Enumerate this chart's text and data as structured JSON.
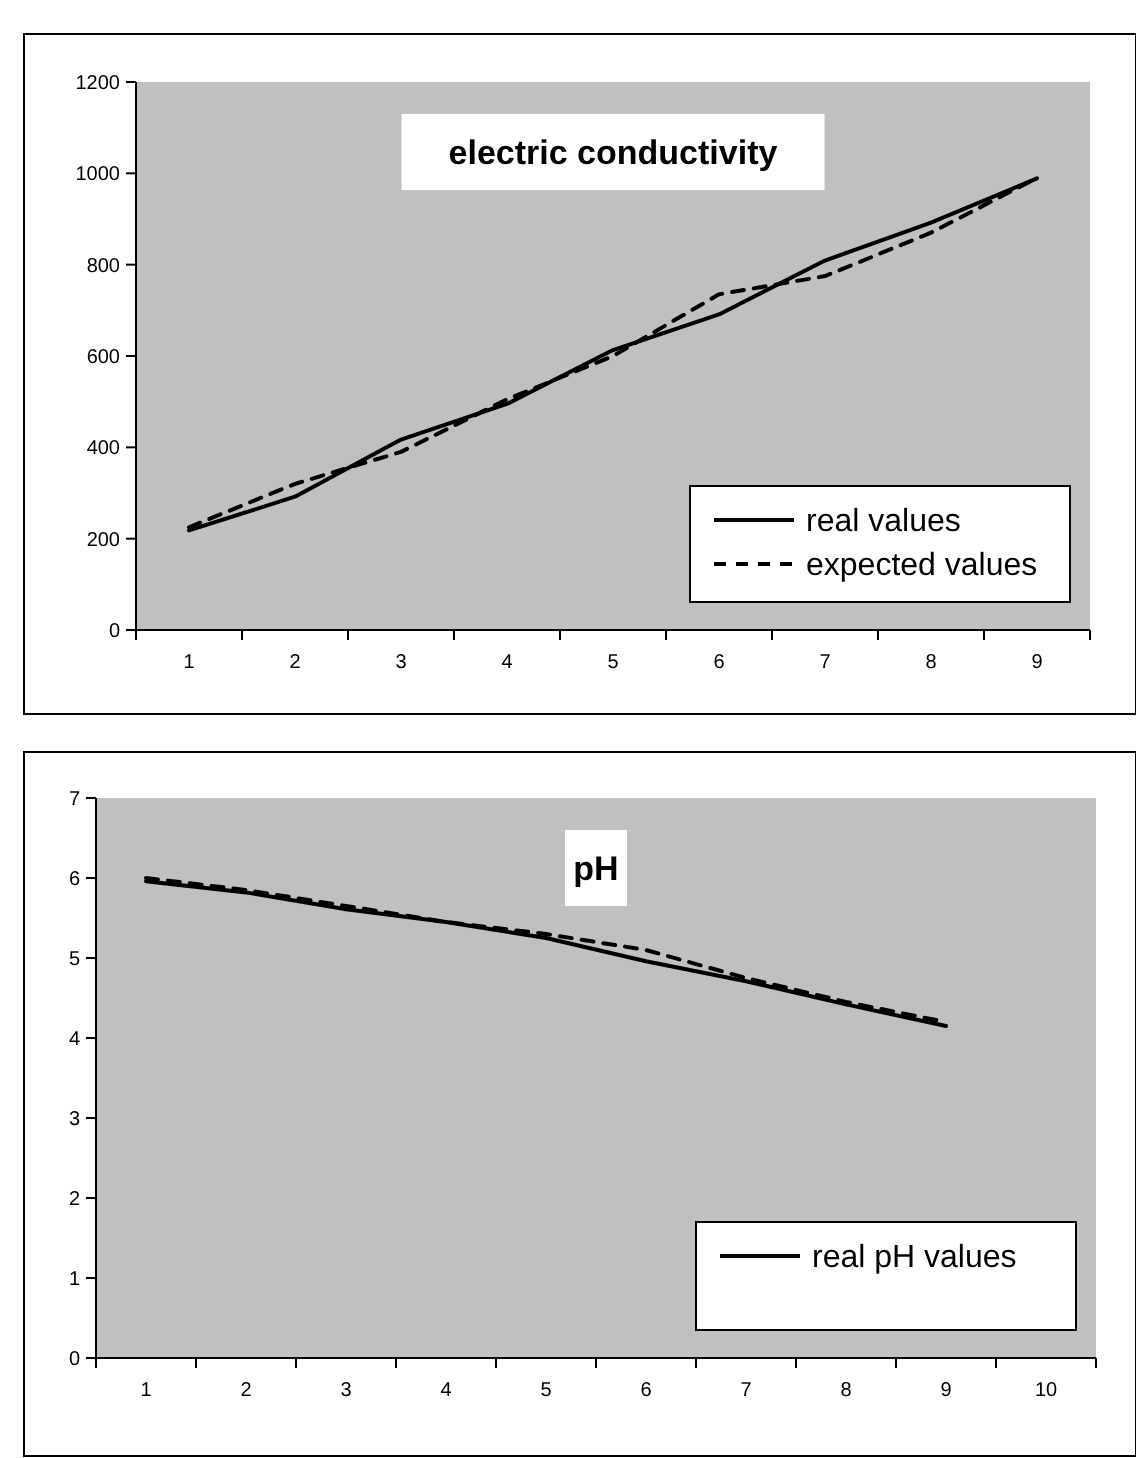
{
  "chart_data": [
    {
      "type": "line",
      "title": "electric conductivity",
      "categories": [
        "1",
        "2",
        "3",
        "4",
        "5",
        "6",
        "7",
        "8",
        "9"
      ],
      "series": [
        {
          "name": "real values",
          "color": "#000000",
          "line_style": "solid",
          "values": [
            218,
            292,
            417,
            495,
            613,
            691,
            809,
            892,
            989
          ]
        },
        {
          "name": "expected values",
          "color": "#000000",
          "line_style": "dashed",
          "values": [
            225,
            320,
            390,
            505,
            600,
            735,
            775,
            870,
            990
          ]
        }
      ],
      "ylim": [
        0,
        1200
      ],
      "yticks": [
        0,
        200,
        400,
        600,
        800,
        1000,
        1200
      ],
      "grid": false,
      "legend": "bottom right",
      "marker": "none"
    },
    {
      "type": "line",
      "title": "pH",
      "categories": [
        "1",
        "2",
        "3",
        "4",
        "5",
        "6",
        "7",
        "8",
        "9",
        "10"
      ],
      "series": [
        {
          "name": "real pH values",
          "color": "#000000",
          "line_style": "solid",
          "values": [
            5.96,
            5.82,
            5.61,
            5.45,
            5.25,
            4.96,
            4.71,
            4.42,
            4.15,
            null
          ]
        },
        {
          "color": "#000000",
          "line_style": "dashed",
          "values": [
            6.0,
            5.85,
            5.65,
            5.45,
            5.3,
            5.1,
            4.75,
            4.45,
            4.2,
            null
          ]
        }
      ],
      "ylim": [
        0,
        7
      ],
      "yticks": [
        0,
        1,
        2,
        3,
        4,
        5,
        6,
        7
      ],
      "grid": false,
      "legend": "bottom right",
      "marker": "none"
    }
  ]
}
